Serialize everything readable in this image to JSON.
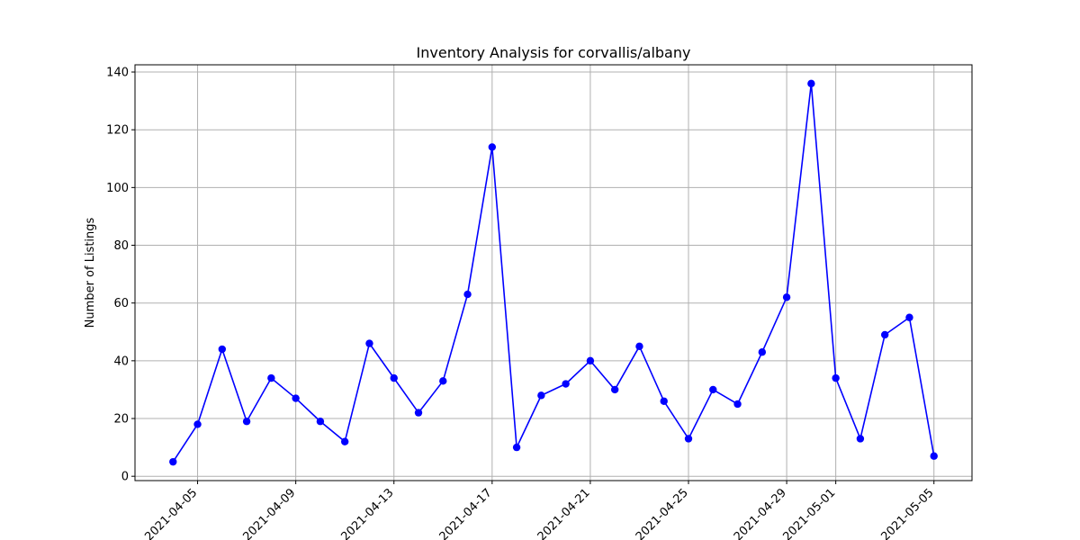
{
  "chart_data": {
    "type": "line",
    "title": "Inventory Analysis for corvallis/albany",
    "xlabel": "",
    "ylabel": "Number of Listings",
    "grid": true,
    "x": [
      "2021-04-04",
      "2021-04-05",
      "2021-04-06",
      "2021-04-07",
      "2021-04-08",
      "2021-04-09",
      "2021-04-10",
      "2021-04-11",
      "2021-04-12",
      "2021-04-13",
      "2021-04-14",
      "2021-04-15",
      "2021-04-16",
      "2021-04-17",
      "2021-04-18",
      "2021-04-19",
      "2021-04-20",
      "2021-04-21",
      "2021-04-22",
      "2021-04-23",
      "2021-04-24",
      "2021-04-25",
      "2021-04-26",
      "2021-04-27",
      "2021-04-28",
      "2021-04-29",
      "2021-04-30",
      "2021-05-01",
      "2021-05-02",
      "2021-05-03",
      "2021-05-04",
      "2021-05-05"
    ],
    "series": [
      {
        "name": "Listings",
        "color": "#0000ff",
        "values": [
          5,
          18,
          44,
          19,
          34,
          27,
          19,
          12,
          46,
          34,
          22,
          33,
          63,
          114,
          10,
          28,
          32,
          40,
          30,
          45,
          26,
          13,
          30,
          25,
          43,
          62,
          136,
          34,
          13,
          49,
          55,
          7
        ]
      }
    ],
    "x_tick_labels": [
      "2021-04-05",
      "2021-04-09",
      "2021-04-13",
      "2021-04-17",
      "2021-04-21",
      "2021-04-25",
      "2021-04-29",
      "2021-05-01",
      "2021-05-05"
    ],
    "y_ticks": [
      0,
      20,
      40,
      60,
      80,
      100,
      120,
      140
    ],
    "ylim": [
      -1.5,
      142.5
    ]
  }
}
